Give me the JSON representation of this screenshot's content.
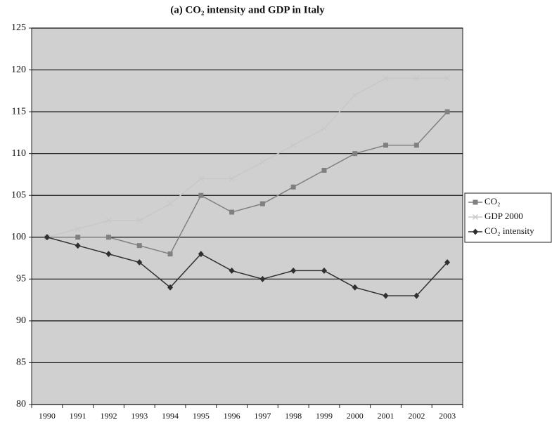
{
  "chart_data": {
    "type": "line",
    "title": "(a) CO₂ intensity and GDP in Italy",
    "categories": [
      "1990",
      "1991",
      "1992",
      "1993",
      "1994",
      "1995",
      "1996",
      "1997",
      "1998",
      "1999",
      "2000",
      "2001",
      "2002",
      "2003"
    ],
    "series": [
      {
        "name": "CO₂",
        "color": "#808080",
        "marker": "square",
        "values": [
          100,
          100,
          100,
          99,
          98,
          105,
          103,
          104,
          106,
          108,
          110,
          111,
          111,
          115
        ]
      },
      {
        "name": "GDP 2000",
        "color": "#c8c8c8",
        "marker": "cross",
        "values": [
          100,
          101,
          102,
          102,
          104,
          107,
          107,
          109,
          111,
          113,
          117,
          119,
          119,
          119
        ]
      },
      {
        "name": "CO₂ intensity",
        "color": "#303030",
        "marker": "diamond",
        "values": [
          100,
          99,
          98,
          97,
          94,
          98,
          96,
          95,
          96,
          96,
          94,
          93,
          93,
          97
        ]
      }
    ],
    "ylim": [
      80,
      125
    ],
    "yticks": [
      80,
      85,
      90,
      95,
      100,
      105,
      110,
      115,
      120,
      125
    ],
    "grid": true,
    "legend": "right"
  }
}
